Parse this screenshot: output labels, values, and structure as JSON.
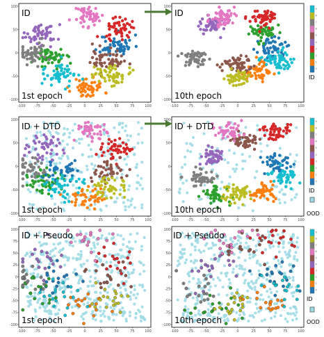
{
  "colors": {
    "classes": [
      "#1f77b4",
      "#ff7f0e",
      "#2ca02c",
      "#d62728",
      "#9467bd",
      "#8c564b",
      "#e377c2",
      "#7f7f7f",
      "#bcbd22",
      "#17becf"
    ],
    "ood": "#9edae5",
    "arrow": "#4a7a32"
  },
  "colorbar": {
    "ticks": [
      "0",
      "1",
      "2",
      "3",
      "4",
      "5",
      "6",
      "7",
      "8",
      "9"
    ],
    "id_label": "ID",
    "ood_label": "OOD"
  },
  "chart_data": [
    {
      "type": "scatter",
      "title": "ID",
      "annotation": "1st epoch",
      "xlim": [
        -100,
        100
      ],
      "ylim": [
        -100,
        100
      ],
      "xticks": [
        "-100",
        "-75",
        "-50",
        "-25",
        "0",
        "25",
        "50",
        "75",
        "100"
      ],
      "yticks": [
        "-100",
        "-50",
        "0",
        "50",
        "100"
      ],
      "series": [
        {
          "points": []
        }
      ]
    },
    {
      "type": "scatter",
      "title": "ID",
      "annotation": "10th epoch",
      "xlim": [
        -100,
        100
      ],
      "ylim": [
        -100,
        100
      ],
      "xticks": [
        "-100",
        "-75",
        "-50",
        "-25",
        "0",
        "25",
        "50",
        "75",
        "100"
      ],
      "yticks": [
        "-100",
        "-50",
        "0",
        "50",
        "100"
      ],
      "series": [
        {
          "points": []
        }
      ]
    },
    {
      "type": "scatter",
      "title": "ID + DTD",
      "annotation": "1st epoch",
      "xlim": [
        -100,
        100
      ],
      "ylim": [
        -100,
        100
      ],
      "xticks": [
        "-100",
        "-75",
        "-50",
        "-25",
        "0",
        "25",
        "50",
        "75",
        "100"
      ],
      "yticks": [
        "-100",
        "-50",
        "0",
        "50",
        "100"
      ],
      "series": [
        {
          "points": []
        }
      ]
    },
    {
      "type": "scatter",
      "title": "ID + DTD",
      "annotation": "10th epoch",
      "xlim": [
        -100,
        100
      ],
      "ylim": [
        -100,
        100
      ],
      "xticks": [
        "-100",
        "-75",
        "-50",
        "-25",
        "0",
        "25",
        "50",
        "75",
        "100"
      ],
      "yticks": [
        "-100",
        "-50",
        "0",
        "50",
        "100"
      ],
      "series": [
        {
          "points": []
        }
      ]
    },
    {
      "type": "scatter",
      "title": "ID + Pseudo",
      "annotation": "1st epoch",
      "xlim": [
        -100,
        100
      ],
      "ylim": [
        -100,
        100
      ],
      "xticks": [
        "-100",
        "-75",
        "-50",
        "-25",
        "0",
        "25",
        "50",
        "75",
        "100"
      ],
      "yticks": [
        "-100",
        "-75",
        "-50",
        "-25",
        "0",
        "25",
        "50",
        "75",
        "100"
      ],
      "series": [
        {
          "points": []
        }
      ]
    },
    {
      "type": "scatter",
      "title": "ID + Pseudo",
      "annotation": "10th epoch",
      "xlim": [
        -100,
        100
      ],
      "ylim": [
        -100,
        100
      ],
      "xticks": [
        "-100",
        "-75",
        "-50",
        "-25",
        "0",
        "25",
        "50",
        "75",
        "100"
      ],
      "yticks": [
        "-100",
        "-75",
        "-50",
        "-25",
        "0",
        "25",
        "50",
        "75",
        "100"
      ],
      "series": [
        {
          "points": []
        }
      ]
    }
  ]
}
